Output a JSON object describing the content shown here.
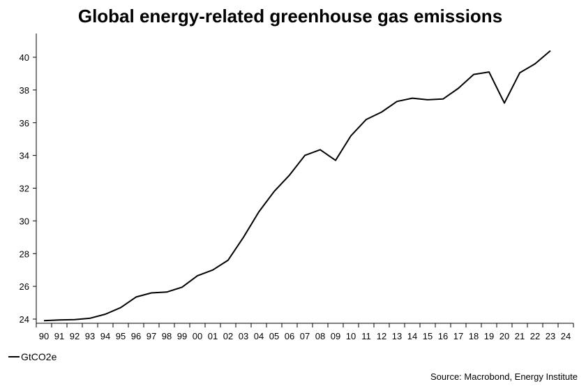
{
  "chart_data": {
    "type": "line",
    "title": "Global energy-related greenhouse gas emissions",
    "xlabel": "",
    "ylabel": "",
    "x_tick_labels": [
      "90",
      "91",
      "92",
      "93",
      "94",
      "95",
      "96",
      "97",
      "98",
      "99",
      "00",
      "01",
      "02",
      "03",
      "04",
      "05",
      "06",
      "07",
      "08",
      "09",
      "10",
      "11",
      "12",
      "13",
      "14",
      "15",
      "16",
      "17",
      "18",
      "19",
      "20",
      "21",
      "22",
      "23",
      "24"
    ],
    "y_ticks": [
      24,
      26,
      28,
      30,
      32,
      34,
      36,
      38,
      40
    ],
    "ylim": [
      23.7,
      41.4
    ],
    "xlim": [
      1990,
      2024
    ],
    "grid": false,
    "legend_position": "bottom-left",
    "series": [
      {
        "name": "GtCO2e",
        "color": "#000000",
        "x": [
          1990,
          1991,
          1992,
          1993,
          1994,
          1995,
          1996,
          1997,
          1998,
          1999,
          2000,
          2001,
          2002,
          2003,
          2004,
          2005,
          2006,
          2007,
          2008,
          2009,
          2010,
          2011,
          2012,
          2013,
          2014,
          2015,
          2016,
          2017,
          2018,
          2019,
          2020,
          2021,
          2022,
          2023
        ],
        "values": [
          23.9,
          23.95,
          23.97,
          24.05,
          24.3,
          24.7,
          25.35,
          25.6,
          25.65,
          25.95,
          26.65,
          27.0,
          27.6,
          29.0,
          30.55,
          31.8,
          32.8,
          34.0,
          34.35,
          33.7,
          35.2,
          36.2,
          36.65,
          37.3,
          37.5,
          37.4,
          37.45,
          38.1,
          38.95,
          39.1,
          37.2,
          39.05,
          39.6,
          40.4
        ]
      }
    ]
  },
  "source": "Source: Macrobond, Energy Institute"
}
